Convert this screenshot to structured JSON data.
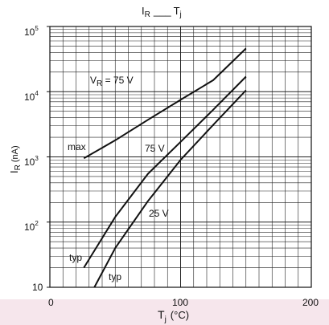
{
  "chart_data": {
    "type": "line",
    "title": "I_R ___ T_j",
    "title_main": "I",
    "title_main_sub": "R",
    "title_sep": "___",
    "title_right": "T",
    "title_right_sub": "j",
    "xlabel_main": "T",
    "xlabel_sub": "j",
    "xlabel_unit": "(°C)",
    "ylabel": "I_R (nA)",
    "ylabel_main": "I",
    "ylabel_sub": "R",
    "ylabel_unit": "(nA)",
    "x_scale": "linear",
    "y_scale": "log",
    "xlim": [
      0,
      200
    ],
    "ylim": [
      10,
      100000
    ],
    "x_ticks": [
      0,
      100,
      200
    ],
    "x_tick_labels": [
      "0",
      "100",
      "200"
    ],
    "y_ticks": [
      10,
      100,
      1000,
      10000,
      100000
    ],
    "y_tick_labels": [
      {
        "base": "10",
        "exp": ""
      },
      {
        "base": "10",
        "exp": "2"
      },
      {
        "base": "10",
        "exp": "3"
      },
      {
        "base": "10",
        "exp": "4"
      },
      {
        "base": "10",
        "exp": "5"
      }
    ],
    "grid": true,
    "annotations": {
      "vr_main": "V",
      "vr_sub": "R",
      "vr_value": " = 75 V"
    },
    "series": [
      {
        "name": "max",
        "x": [
          26,
          50,
          75,
          100,
          125,
          150
        ],
        "y": [
          950,
          1800,
          3700,
          7500,
          15000,
          46000
        ]
      },
      {
        "name": "typ",
        "label_2": "75 V",
        "x": [
          26,
          50,
          75,
          100,
          125,
          150
        ],
        "y": [
          20,
          120,
          550,
          1700,
          5300,
          17000
        ]
      },
      {
        "name": "typ",
        "label_2": "25 V",
        "x": [
          34,
          50,
          75,
          100,
          125,
          150
        ],
        "y": [
          10,
          40,
          210,
          900,
          3100,
          10500
        ]
      }
    ],
    "series_labels": [
      "max",
      "typ",
      "typ",
      "75 V",
      "25 V"
    ]
  }
}
